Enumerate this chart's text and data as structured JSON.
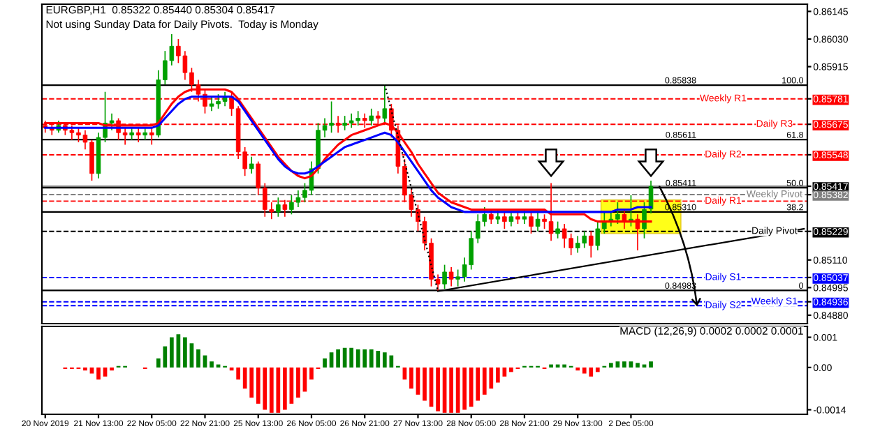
{
  "chart_data": [
    {
      "type": "candlestick",
      "title": "EURGBP,H1  0.85322 0.85440 0.85304 0.85417",
      "subtitle": "Not using Sunday Data for Daily Pivots.  Today is Monday",
      "categories": [
        null,
        null,
        null,
        null,
        null,
        null,
        null,
        null,
        null,
        null,
        null,
        null,
        null,
        null,
        null,
        null,
        null,
        null,
        null,
        null,
        null,
        null,
        null,
        null,
        null,
        null,
        null,
        null,
        null,
        null,
        null,
        null,
        null,
        null,
        null,
        null,
        null,
        null,
        null,
        null,
        null,
        null,
        null,
        null,
        null,
        null,
        null,
        null,
        null,
        null,
        null,
        null,
        null,
        null,
        null,
        null,
        null,
        null,
        null,
        null,
        null,
        null,
        null,
        null,
        null,
        null,
        null,
        null,
        null,
        null,
        null,
        null,
        null,
        null,
        null,
        null,
        null,
        null,
        null,
        null,
        null,
        null,
        null,
        null,
        null,
        null,
        null,
        null,
        null,
        null,
        null,
        null,
        null,
        null,
        null,
        null,
        null,
        null,
        null,
        null,
        null,
        null,
        null,
        null,
        null,
        null,
        null,
        null,
        null,
        null,
        null,
        null,
        null,
        null,
        null
      ],
      "ohlc": [
        [
          0.8567,
          0.8569,
          0.8564,
          0.8566
        ],
        [
          0.8566,
          0.8568,
          0.8563,
          0.8565
        ],
        [
          0.8565,
          0.8569,
          0.8564,
          0.8567
        ],
        [
          0.8567,
          0.8568,
          0.8563,
          0.8565
        ],
        [
          0.8565,
          0.8567,
          0.8561,
          0.8564
        ],
        [
          0.8564,
          0.8566,
          0.856,
          0.8563
        ],
        [
          0.8563,
          0.8565,
          0.8557,
          0.856
        ],
        [
          0.856,
          0.8561,
          0.8544,
          0.8547
        ],
        [
          0.8547,
          0.8564,
          0.8545,
          0.8562
        ],
        [
          0.8562,
          0.8581,
          0.856,
          0.8568
        ],
        [
          0.8568,
          0.8572,
          0.8565,
          0.8569
        ],
        [
          0.8569,
          0.857,
          0.8561,
          0.8564
        ],
        [
          0.8564,
          0.8566,
          0.8559,
          0.8563
        ],
        [
          0.8563,
          0.8566,
          0.8561,
          0.8564
        ],
        [
          0.8564,
          0.8566,
          0.856,
          0.8563
        ],
        [
          0.8563,
          0.8566,
          0.8561,
          0.8564
        ],
        [
          0.8564,
          0.8566,
          0.8559,
          0.8563
        ],
        [
          0.8563,
          0.859,
          0.8562,
          0.8586
        ],
        [
          0.8586,
          0.8598,
          0.8584,
          0.8594
        ],
        [
          0.8594,
          0.8605,
          0.8592,
          0.86
        ],
        [
          0.86,
          0.8603,
          0.8593,
          0.8596
        ],
        [
          0.8596,
          0.8598,
          0.8586,
          0.8589
        ],
        [
          0.8589,
          0.8591,
          0.8581,
          0.8584
        ],
        [
          0.8584,
          0.8586,
          0.8577,
          0.858
        ],
        [
          0.858,
          0.8582,
          0.8572,
          0.8575
        ],
        [
          0.8575,
          0.8579,
          0.8573,
          0.8576
        ],
        [
          0.8576,
          0.858,
          0.8574,
          0.8577
        ],
        [
          0.8577,
          0.8581,
          0.8575,
          0.8579
        ],
        [
          0.8579,
          0.8581,
          0.8571,
          0.8574
        ],
        [
          0.8574,
          0.8575,
          0.8553,
          0.8556
        ],
        [
          0.8556,
          0.8558,
          0.8546,
          0.8549
        ],
        [
          0.8549,
          0.8554,
          0.8547,
          0.8551
        ],
        [
          0.8551,
          0.8552,
          0.8538,
          0.8541
        ],
        [
          0.8541,
          0.8543,
          0.8529,
          0.8532
        ],
        [
          0.8532,
          0.8535,
          0.8528,
          0.8531
        ],
        [
          0.8531,
          0.8537,
          0.8529,
          0.8534
        ],
        [
          0.8534,
          0.8536,
          0.8529,
          0.8532
        ],
        [
          0.8532,
          0.8538,
          0.853,
          0.8535
        ],
        [
          0.8535,
          0.854,
          0.8533,
          0.8537
        ],
        [
          0.8537,
          0.8543,
          0.8535,
          0.854
        ],
        [
          0.854,
          0.8552,
          0.8538,
          0.8549
        ],
        [
          0.8549,
          0.8568,
          0.8547,
          0.8565
        ],
        [
          0.8565,
          0.857,
          0.8562,
          0.8567
        ],
        [
          0.8567,
          0.8577,
          0.8564,
          0.8568
        ],
        [
          0.8568,
          0.8571,
          0.8564,
          0.8567
        ],
        [
          0.8567,
          0.8571,
          0.8565,
          0.8568
        ],
        [
          0.8568,
          0.8572,
          0.8566,
          0.8569
        ],
        [
          0.8569,
          0.8573,
          0.8567,
          0.857
        ],
        [
          0.857,
          0.8572,
          0.8566,
          0.8569
        ],
        [
          0.8569,
          0.8574,
          0.8567,
          0.8571
        ],
        [
          0.8571,
          0.8573,
          0.8567,
          0.857
        ],
        [
          0.857,
          0.8584,
          0.8568,
          0.8574
        ],
        [
          0.8574,
          0.8576,
          0.8562,
          0.8565
        ],
        [
          0.8565,
          0.8567,
          0.8547,
          0.855
        ],
        [
          0.855,
          0.8553,
          0.8535,
          0.8538
        ],
        [
          0.8538,
          0.8541,
          0.8529,
          0.8532
        ],
        [
          0.8532,
          0.8534,
          0.8523,
          0.8527
        ],
        [
          0.8527,
          0.8529,
          0.8515,
          0.8518
        ],
        [
          0.8518,
          0.852,
          0.85,
          0.8503
        ],
        [
          0.8503,
          0.8505,
          0.8498,
          0.8501
        ],
        [
          0.8501,
          0.8509,
          0.8499,
          0.8506
        ],
        [
          0.8506,
          0.8508,
          0.85,
          0.8503
        ],
        [
          0.8503,
          0.8507,
          0.85,
          0.8504
        ],
        [
          0.8504,
          0.8512,
          0.8502,
          0.8509
        ],
        [
          0.8509,
          0.8523,
          0.8507,
          0.852
        ],
        [
          0.852,
          0.853,
          0.8518,
          0.8527
        ],
        [
          0.8527,
          0.8533,
          0.8525,
          0.853
        ],
        [
          0.853,
          0.8532,
          0.8526,
          0.8528
        ],
        [
          0.8528,
          0.8532,
          0.8526,
          0.8529
        ],
        [
          0.8529,
          0.8531,
          0.8524,
          0.8527
        ],
        [
          0.8527,
          0.8531,
          0.8525,
          0.8529
        ],
        [
          0.8529,
          0.8531,
          0.8526,
          0.8528
        ],
        [
          0.8528,
          0.8532,
          0.8526,
          0.8529
        ],
        [
          0.8529,
          0.8531,
          0.8522,
          0.8525
        ],
        [
          0.8525,
          0.8531,
          0.8523,
          0.8528
        ],
        [
          0.8528,
          0.853,
          0.8524,
          0.8527
        ],
        [
          0.8527,
          0.8543,
          0.8519,
          0.8522
        ],
        [
          0.8522,
          0.8527,
          0.852,
          0.8524
        ],
        [
          0.8524,
          0.8526,
          0.8516,
          0.852
        ],
        [
          0.852,
          0.8522,
          0.8513,
          0.8516
        ],
        [
          0.8516,
          0.8521,
          0.8514,
          0.8518
        ],
        [
          0.8518,
          0.8523,
          0.8516,
          0.8521
        ],
        [
          0.8521,
          0.8523,
          0.8512,
          0.8517
        ],
        [
          0.8517,
          0.8527,
          0.8515,
          0.8524
        ],
        [
          0.8524,
          0.8531,
          0.8522,
          0.8527
        ],
        [
          0.8527,
          0.8531,
          0.8525,
          0.8528
        ],
        [
          0.8528,
          0.8535,
          0.8526,
          0.853
        ],
        [
          0.853,
          0.8532,
          0.8524,
          0.8527
        ],
        [
          0.8527,
          0.8538,
          0.8525,
          0.8528
        ],
        [
          0.8528,
          0.853,
          0.8515,
          0.8524
        ],
        [
          0.8524,
          0.8535,
          0.852,
          0.8532
        ],
        [
          0.85322,
          0.8544,
          0.85304,
          0.85417
        ],
        null,
        null,
        null,
        null,
        null,
        null,
        null,
        null,
        null,
        null,
        null,
        null,
        null,
        null,
        null,
        null,
        null,
        null,
        null,
        null,
        null,
        null,
        null
      ],
      "series": [
        {
          "type": "line",
          "color": "#ff0000",
          "values": [
            0.8568,
            0.8568,
            0.8568,
            0.8568,
            0.8568,
            0.8568,
            0.8568,
            0.8568,
            0.8568,
            0.8567,
            0.8567,
            0.8567,
            0.8567,
            0.8567,
            0.8567,
            0.8567,
            0.8567,
            0.8568,
            0.8572,
            0.8576,
            0.8579,
            0.8581,
            0.8582,
            0.8582,
            0.8582,
            0.8582,
            0.8582,
            0.8582,
            0.8581,
            0.8578,
            0.8574,
            0.857,
            0.8566,
            0.8562,
            0.8558,
            0.8554,
            0.8551,
            0.8548,
            0.8546,
            0.8545,
            0.8546,
            0.8549,
            0.8553,
            0.8556,
            0.8559,
            0.8561,
            0.8563,
            0.8564,
            0.8565,
            0.8566,
            0.8567,
            0.8568,
            0.8567,
            0.8564,
            0.856,
            0.8556,
            0.8551,
            0.8547,
            0.8543,
            0.8539,
            0.8537,
            0.8535,
            0.8534,
            0.8533,
            0.8532,
            0.8532,
            0.8532,
            0.8532,
            0.8532,
            0.8532,
            0.8532,
            0.8532,
            0.8532,
            0.8532,
            0.8532,
            0.8532,
            0.853,
            0.853,
            0.853,
            0.853,
            0.853,
            0.853,
            0.8528,
            0.8527,
            0.8527,
            0.8527,
            0.8527,
            0.8527,
            0.8527,
            0.8527,
            0.8527,
            0.8527,
            null,
            null,
            null,
            null,
            null,
            null,
            null,
            null,
            null,
            null,
            null,
            null,
            null,
            null,
            null,
            null,
            null,
            null,
            null,
            null,
            null,
            null,
            null
          ]
        },
        {
          "type": "line",
          "color": "#0000ff",
          "values": [
            0.8566,
            0.8566,
            0.8566,
            0.8566,
            0.8566,
            0.8566,
            0.8566,
            0.8566,
            0.8566,
            0.8566,
            0.8566,
            0.8566,
            0.8566,
            0.8566,
            0.8566,
            0.8566,
            0.8566,
            0.8567,
            0.857,
            0.8573,
            0.8576,
            0.8578,
            0.8579,
            0.8579,
            0.8579,
            0.8579,
            0.8579,
            0.8579,
            0.8579,
            0.8577,
            0.8573,
            0.8569,
            0.8565,
            0.8561,
            0.8557,
            0.8553,
            0.855,
            0.8548,
            0.8547,
            0.8547,
            0.8548,
            0.855,
            0.8552,
            0.8554,
            0.8556,
            0.8558,
            0.8559,
            0.856,
            0.8561,
            0.8562,
            0.8563,
            0.8564,
            0.8563,
            0.856,
            0.8556,
            0.8552,
            0.8548,
            0.8544,
            0.854,
            0.8537,
            0.8535,
            0.8533,
            0.8532,
            0.8531,
            0.8531,
            0.8531,
            0.8531,
            0.8531,
            0.8531,
            0.8531,
            0.8531,
            0.8531,
            0.8531,
            0.8531,
            0.8531,
            0.8531,
            0.8531,
            0.8531,
            0.8531,
            0.8531,
            0.8531,
            0.8531,
            0.8531,
            0.8531,
            0.8531,
            0.8531,
            0.8532,
            0.8532,
            0.8532,
            0.8533,
            0.8533,
            0.8533,
            null,
            null,
            null,
            null,
            null,
            null,
            null,
            null,
            null,
            null,
            null,
            null,
            null,
            null,
            null,
            null,
            null,
            null,
            null,
            null,
            null,
            null,
            null
          ]
        },
        {
          "type": "line",
          "color": "#000000",
          "line_style": "solid",
          "values": [
            null,
            null,
            null,
            null,
            null,
            null,
            null,
            null,
            null,
            null,
            null,
            null,
            null,
            null,
            null,
            null,
            null,
            null,
            null,
            null,
            null,
            null,
            null,
            null,
            null,
            null,
            null,
            null,
            null,
            null,
            null,
            null,
            null,
            null,
            null,
            null,
            null,
            null,
            null,
            null,
            null,
            null,
            null,
            null,
            null,
            null,
            null,
            null,
            null,
            null,
            null,
            null,
            null,
            null,
            null,
            null,
            null,
            null,
            null,
            0.8498,
            null,
            null,
            null,
            null,
            null,
            null,
            null,
            null,
            null,
            null,
            null,
            null,
            null,
            null,
            null,
            null,
            null,
            null,
            null,
            null,
            null,
            null,
            null,
            null,
            null,
            null,
            null,
            null,
            null,
            null,
            null,
            null,
            null,
            null,
            null,
            null,
            null,
            null,
            null,
            null,
            null,
            null,
            null,
            null,
            null,
            null,
            null,
            null,
            null,
            null,
            null,
            null,
            null,
            null,
            0.8524
          ]
        },
        {
          "type": "line",
          "color": "#000000",
          "line_style": "dotted",
          "values": [
            null,
            null,
            null,
            null,
            null,
            null,
            null,
            null,
            null,
            null,
            null,
            null,
            null,
            null,
            null,
            null,
            null,
            null,
            null,
            null,
            null,
            null,
            null,
            null,
            null,
            null,
            null,
            null,
            null,
            null,
            null,
            null,
            null,
            null,
            null,
            null,
            null,
            null,
            null,
            null,
            null,
            null,
            null,
            null,
            null,
            null,
            null,
            null,
            null,
            null,
            null,
            0.8584,
            null,
            null,
            null,
            null,
            null,
            null,
            null,
            0.8498,
            null,
            null,
            null,
            null,
            null,
            null,
            null,
            null,
            null,
            null,
            null,
            null,
            null,
            null,
            null,
            null,
            null,
            null,
            null,
            null,
            null,
            null,
            null,
            null,
            null,
            null,
            null,
            null,
            null,
            null,
            null,
            null,
            null,
            null,
            null,
            null,
            null,
            null,
            null,
            null,
            null,
            null,
            null,
            null,
            null,
            null,
            null,
            null,
            null,
            null,
            null,
            null,
            null,
            null,
            null
          ]
        }
      ],
      "ref_lines": [
        {
          "axis": "y",
          "value": 0.85781,
          "label": "Weekly R1",
          "color": "#ff0000",
          "line_style": "dashed"
        },
        {
          "axis": "y",
          "value": 0.85675,
          "label": "Daily R3",
          "color": "#ff0000",
          "line_style": "dashed"
        },
        {
          "axis": "y",
          "value": 0.85548,
          "label": "Daily R2",
          "color": "#ff0000",
          "line_style": "dashed"
        },
        {
          "axis": "y",
          "value": 0.85382,
          "label": "Weekly Pivot",
          "color": "#808080",
          "line_style": "dashed"
        },
        {
          "axis": "y",
          "value": 0.85355,
          "label": "Daily R1",
          "color": "#ff0000",
          "line_style": "dashed"
        },
        {
          "axis": "y",
          "value": 0.85229,
          "label": "Daily Pivot",
          "color": "#000000",
          "line_style": "dashed"
        },
        {
          "axis": "y",
          "value": 0.85037,
          "label": "Daily S1",
          "color": "#0000ff",
          "line_style": "dashed"
        },
        {
          "axis": "y",
          "value": 0.84936,
          "label": "Weekly S1",
          "color": "#0000ff",
          "line_style": "dashed"
        },
        {
          "axis": "y",
          "value": 0.8492,
          "label": "Daily S2",
          "color": "#0000ff",
          "line_style": "dashed"
        },
        {
          "axis": "y",
          "value": 0.85838,
          "label": "0.85838",
          "color": "#000000",
          "line_style": "solid"
        },
        {
          "axis": "y",
          "value": 0.85611,
          "label": "0.85611",
          "color": "#000000",
          "line_style": "solid"
        },
        {
          "axis": "y",
          "value": 0.85411,
          "label": "0.85411",
          "color": "#000000",
          "line_style": "solid"
        },
        {
          "axis": "y",
          "value": 0.8531,
          "label": "0.85310",
          "color": "#000000",
          "line_style": "solid"
        },
        {
          "axis": "y",
          "value": 0.84983,
          "label": "0.84983",
          "color": "#000000",
          "line_style": "solid"
        },
        {
          "axis": "y",
          "value": 0.85417,
          "label": null,
          "color": "#000000",
          "line_style": "solid"
        }
      ],
      "annotations": [
        {
          "text": "100.0",
          "y": 0.85838
        },
        {
          "text": "61.8",
          "y": 0.85611
        },
        {
          "text": "50.0",
          "y": 0.85411
        },
        {
          "text": "38.2",
          "y": 0.8531
        },
        {
          "text": "0",
          "y": 0.84983
        }
      ],
      "ylim": [
        0.84845,
        0.86175
      ],
      "yticks": [
        0.86145,
        {
          "value": 0.8603,
          "label": "0.86030"
        },
        0.85915,
        0.85781,
        0.85675,
        0.85548,
        0.85417,
        0.85382,
        0.85229,
        {
          "value": 0.8511,
          "label": "0.85110"
        },
        0.85037,
        0.84995,
        0.84936,
        {
          "value": 0.8488,
          "label": "0.84880"
        }
      ]
    },
    {
      "type": "bar",
      "title": "MACD (12,26,9) 0.0002 0.0002 0.0001",
      "categories": [
        "20 Nov 2019",
        null,
        null,
        null,
        null,
        null,
        null,
        null,
        "21 Nov 13:00",
        null,
        null,
        null,
        null,
        null,
        null,
        null,
        "22 Nov 05:00",
        null,
        null,
        null,
        null,
        null,
        null,
        null,
        "22 Nov 21:00",
        null,
        null,
        null,
        null,
        null,
        null,
        null,
        "25 Nov 13:00",
        null,
        null,
        null,
        null,
        null,
        null,
        null,
        "26 Nov 05:00",
        null,
        null,
        null,
        null,
        null,
        null,
        null,
        "26 Nov 21:00",
        null,
        null,
        null,
        null,
        null,
        null,
        null,
        "27 Nov 13:00",
        null,
        null,
        null,
        null,
        null,
        null,
        null,
        "28 Nov 05:00",
        null,
        null,
        null,
        null,
        null,
        null,
        null,
        "28 Nov 21:00",
        null,
        null,
        null,
        null,
        null,
        null,
        null,
        "29 Nov 13:00",
        null,
        null,
        null,
        null,
        null,
        null,
        null,
        "2 Dec 05:00",
        null,
        null,
        null,
        null,
        null,
        null,
        null,
        null,
        null,
        null,
        null,
        null,
        null,
        null,
        null,
        null,
        null,
        null,
        null,
        null,
        null,
        null,
        null,
        null,
        null,
        null
      ],
      "values": [
        0,
        0,
        0,
        -5e-05,
        -5e-05,
        -5e-05,
        -0.0001,
        -0.0002,
        -0.0004,
        -0.0003,
        -0.0001,
        5e-05,
        5e-05,
        0,
        0,
        -5e-05,
        0,
        0.0003,
        0.0007,
        0.001,
        0.0011,
        0.001,
        0.0008,
        0.0006,
        0.0004,
        0.0002,
        0.0001,
        5e-05,
        -0.0001,
        -0.0004,
        -0.0007,
        -0.001,
        -0.0012,
        -0.0014,
        -0.0015,
        -0.0015,
        -0.0014,
        -0.0012,
        -0.001,
        -0.0008,
        -0.0004,
        -5e-05,
        0.0003,
        0.0005,
        0.0006,
        0.00065,
        0.00065,
        0.0006,
        0.0006,
        0.0006,
        0.00055,
        0.0005,
        0.0004,
        5e-05,
        -0.0004,
        -0.0007,
        -0.0009,
        -0.0011,
        -0.0013,
        -0.00145,
        -0.0015,
        -0.0015,
        -0.0015,
        -0.0014,
        -0.0013,
        -0.0011,
        -0.0009,
        -0.0007,
        -0.0005,
        -0.0003,
        -0.00015,
        -5e-05,
        5e-05,
        5e-05,
        5e-05,
        -5e-05,
        0.0001,
        0.0001,
        0.0001,
        5e-05,
        -0.0001,
        -0.0002,
        -0.0003,
        -0.00015,
        5e-05,
        0.00015,
        0.0002,
        0.0002,
        0.0002,
        0.00015,
        0.0001,
        0.0002,
        null,
        null,
        null,
        null,
        null,
        null,
        null,
        null,
        null,
        null,
        null,
        null,
        null,
        null,
        null,
        null,
        null,
        null,
        null,
        null,
        null,
        null,
        null
      ],
      "colors": [
        "#008000",
        "#008000",
        "#ff0000",
        "#ff0000",
        "#ff0000",
        "#ff0000",
        "#ff0000",
        "#ff0000",
        "#ff0000",
        "#ff0000",
        "#ff0000",
        "#008000",
        "#008000",
        "#008000",
        "#ff0000",
        "#ff0000",
        "#ff0000",
        "#008000",
        "#008000",
        "#008000",
        "#008000",
        "#008000",
        "#008000",
        "#008000",
        "#008000",
        "#008000",
        "#008000",
        "#008000",
        "#ff0000",
        "#ff0000",
        "#ff0000",
        "#ff0000",
        "#ff0000",
        "#ff0000",
        "#ff0000",
        "#ff0000",
        "#ff0000",
        "#ff0000",
        "#ff0000",
        "#ff0000",
        "#ff0000",
        "#ff0000",
        "#008000",
        "#008000",
        "#008000",
        "#008000",
        "#008000",
        "#008000",
        "#008000",
        "#008000",
        "#008000",
        "#008000",
        "#008000",
        "#008000",
        "#ff0000",
        "#ff0000",
        "#ff0000",
        "#ff0000",
        "#ff0000",
        "#ff0000",
        "#ff0000",
        "#ff0000",
        "#ff0000",
        "#ff0000",
        "#ff0000",
        "#ff0000",
        "#ff0000",
        "#ff0000",
        "#ff0000",
        "#ff0000",
        "#ff0000",
        "#ff0000",
        "#008000",
        "#008000",
        "#008000",
        "#ff0000",
        "#008000",
        "#008000",
        "#008000",
        "#008000",
        "#ff0000",
        "#ff0000",
        "#ff0000",
        "#ff0000",
        "#008000",
        "#008000",
        "#008000",
        "#008000",
        "#008000",
        "#008000",
        "#008000",
        "#008000",
        null,
        null,
        null,
        null,
        null,
        null,
        null,
        null,
        null,
        null,
        null,
        null,
        null,
        null,
        null,
        null,
        null,
        null,
        null,
        null,
        null,
        null,
        null
      ],
      "ylim": [
        -0.00155,
        0.00136
      ],
      "yticks": [
        {
          "value": 0.001,
          "label": "0.001"
        },
        {
          "value": 0,
          "label": "0.00"
        },
        {
          "value": -0.0014,
          "label": "-0.0014"
        }
      ]
    }
  ]
}
